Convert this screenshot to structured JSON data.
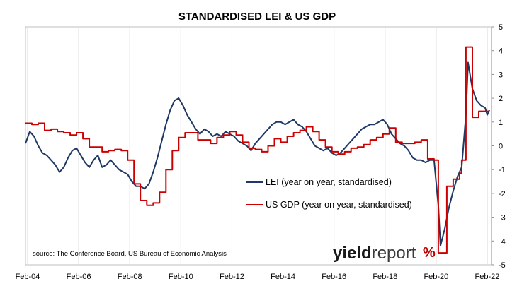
{
  "chart_data": {
    "type": "line",
    "title": "STANDARDISED LEI & US GDP",
    "source": "source: The Conference Board, US Bureau of Economic Analysis",
    "watermark": {
      "text_main": "yield",
      "text_accent": "report",
      "symbol": "%"
    },
    "xlabel": "",
    "ylabel": "",
    "x_tick_labels": [
      "Feb-04",
      "Feb-06",
      "Feb-08",
      "Feb-10",
      "Feb-12",
      "Feb-14",
      "Feb-16",
      "Feb-18",
      "Feb-20",
      "Feb-22"
    ],
    "y_tick_labels": [
      "5",
      "4",
      "3",
      "2",
      "1",
      "0",
      "-1",
      "-2",
      "-3",
      "-4",
      "-5"
    ],
    "xlim": [
      "2004-01",
      "2022-04"
    ],
    "ylim": [
      -5,
      5
    ],
    "y_axis_side": "right",
    "grid": {
      "vertical": true,
      "horizontal": false
    },
    "legend_placement": "center-right, inside plot",
    "series": [
      {
        "name": "LEI (year on year, standardised)",
        "color": "#1f3864",
        "points": [
          [
            "2004-01",
            0.1
          ],
          [
            "2004-03",
            0.6
          ],
          [
            "2004-05",
            0.4
          ],
          [
            "2004-07",
            0.0
          ],
          [
            "2004-09",
            -0.3
          ],
          [
            "2004-11",
            -0.4
          ],
          [
            "2005-01",
            -0.6
          ],
          [
            "2005-03",
            -0.8
          ],
          [
            "2005-05",
            -1.1
          ],
          [
            "2005-07",
            -0.9
          ],
          [
            "2005-09",
            -0.5
          ],
          [
            "2005-11",
            -0.2
          ],
          [
            "2006-01",
            -0.1
          ],
          [
            "2006-03",
            -0.4
          ],
          [
            "2006-05",
            -0.7
          ],
          [
            "2006-07",
            -0.9
          ],
          [
            "2006-09",
            -0.6
          ],
          [
            "2006-11",
            -0.4
          ],
          [
            "2007-01",
            -0.9
          ],
          [
            "2007-03",
            -0.8
          ],
          [
            "2007-05",
            -0.6
          ],
          [
            "2007-07",
            -0.8
          ],
          [
            "2007-09",
            -1.0
          ],
          [
            "2007-11",
            -1.1
          ],
          [
            "2008-01",
            -1.2
          ],
          [
            "2008-03",
            -1.5
          ],
          [
            "2008-05",
            -1.7
          ],
          [
            "2008-07",
            -1.7
          ],
          [
            "2008-09",
            -1.8
          ],
          [
            "2008-11",
            -1.6
          ],
          [
            "2009-01",
            -1.1
          ],
          [
            "2009-03",
            -0.5
          ],
          [
            "2009-05",
            0.2
          ],
          [
            "2009-07",
            0.9
          ],
          [
            "2009-09",
            1.5
          ],
          [
            "2009-11",
            1.9
          ],
          [
            "2010-01",
            2.0
          ],
          [
            "2010-03",
            1.7
          ],
          [
            "2010-05",
            1.3
          ],
          [
            "2010-07",
            1.0
          ],
          [
            "2010-09",
            0.7
          ],
          [
            "2010-11",
            0.5
          ],
          [
            "2011-01",
            0.7
          ],
          [
            "2011-03",
            0.6
          ],
          [
            "2011-05",
            0.4
          ],
          [
            "2011-07",
            0.5
          ],
          [
            "2011-09",
            0.4
          ],
          [
            "2011-11",
            0.6
          ],
          [
            "2012-01",
            0.5
          ],
          [
            "2012-03",
            0.4
          ],
          [
            "2012-05",
            0.2
          ],
          [
            "2012-07",
            0.1
          ],
          [
            "2012-09",
            0.0
          ],
          [
            "2012-11",
            -0.2
          ],
          [
            "2013-01",
            0.1
          ],
          [
            "2013-03",
            0.3
          ],
          [
            "2013-05",
            0.5
          ],
          [
            "2013-07",
            0.7
          ],
          [
            "2013-09",
            0.9
          ],
          [
            "2013-11",
            1.0
          ],
          [
            "2014-01",
            1.0
          ],
          [
            "2014-03",
            0.9
          ],
          [
            "2014-05",
            1.0
          ],
          [
            "2014-07",
            1.1
          ],
          [
            "2014-09",
            0.9
          ],
          [
            "2014-11",
            0.8
          ],
          [
            "2015-01",
            0.6
          ],
          [
            "2015-03",
            0.3
          ],
          [
            "2015-05",
            0.0
          ],
          [
            "2015-07",
            -0.1
          ],
          [
            "2015-09",
            -0.2
          ],
          [
            "2015-11",
            -0.1
          ],
          [
            "2016-01",
            -0.3
          ],
          [
            "2016-03",
            -0.4
          ],
          [
            "2016-05",
            -0.3
          ],
          [
            "2016-07",
            -0.1
          ],
          [
            "2016-09",
            0.1
          ],
          [
            "2016-11",
            0.3
          ],
          [
            "2017-01",
            0.5
          ],
          [
            "2017-03",
            0.7
          ],
          [
            "2017-05",
            0.8
          ],
          [
            "2017-07",
            0.9
          ],
          [
            "2017-09",
            0.9
          ],
          [
            "2017-11",
            1.0
          ],
          [
            "2018-01",
            1.1
          ],
          [
            "2018-03",
            0.9
          ],
          [
            "2018-05",
            0.5
          ],
          [
            "2018-07",
            0.3
          ],
          [
            "2018-09",
            0.1
          ],
          [
            "2018-11",
            0.0
          ],
          [
            "2019-01",
            -0.2
          ],
          [
            "2019-03",
            -0.5
          ],
          [
            "2019-05",
            -0.6
          ],
          [
            "2019-07",
            -0.6
          ],
          [
            "2019-09",
            -0.7
          ],
          [
            "2019-11",
            -0.6
          ],
          [
            "2020-01",
            -0.6
          ],
          [
            "2020-03",
            -2.5
          ],
          [
            "2020-04",
            -4.2
          ],
          [
            "2020-06",
            -3.5
          ],
          [
            "2020-08",
            -2.6
          ],
          [
            "2020-10",
            -1.9
          ],
          [
            "2020-12",
            -1.3
          ],
          [
            "2021-02",
            -0.9
          ],
          [
            "2021-04",
            1.3
          ],
          [
            "2021-05",
            3.5
          ],
          [
            "2021-07",
            2.4
          ],
          [
            "2021-09",
            1.9
          ],
          [
            "2021-11",
            1.7
          ],
          [
            "2022-01",
            1.6
          ],
          [
            "2022-02",
            1.3
          ],
          [
            "2022-03",
            1.5
          ]
        ]
      },
      {
        "name": "US GDP (year on year, standardised)",
        "color": "#cc0000",
        "step": true,
        "points": [
          [
            "2004-01",
            0.95
          ],
          [
            "2004-04",
            0.9
          ],
          [
            "2004-07",
            0.95
          ],
          [
            "2004-10",
            0.65
          ],
          [
            "2005-01",
            0.7
          ],
          [
            "2005-04",
            0.6
          ],
          [
            "2005-07",
            0.55
          ],
          [
            "2005-10",
            0.45
          ],
          [
            "2006-01",
            0.55
          ],
          [
            "2006-04",
            0.3
          ],
          [
            "2006-07",
            -0.05
          ],
          [
            "2006-10",
            -0.05
          ],
          [
            "2007-01",
            -0.25
          ],
          [
            "2007-04",
            -0.2
          ],
          [
            "2007-07",
            -0.15
          ],
          [
            "2007-10",
            -0.2
          ],
          [
            "2008-01",
            -0.6
          ],
          [
            "2008-04",
            -1.6
          ],
          [
            "2008-07",
            -2.3
          ],
          [
            "2008-10",
            -2.5
          ],
          [
            "2009-01",
            -2.4
          ],
          [
            "2009-04",
            -1.95
          ],
          [
            "2009-07",
            -1.0
          ],
          [
            "2009-10",
            -0.2
          ],
          [
            "2010-01",
            0.35
          ],
          [
            "2010-04",
            0.55
          ],
          [
            "2010-07",
            0.55
          ],
          [
            "2010-10",
            0.25
          ],
          [
            "2011-01",
            0.25
          ],
          [
            "2011-04",
            0.1
          ],
          [
            "2011-07",
            0.35
          ],
          [
            "2011-10",
            0.45
          ],
          [
            "2012-01",
            0.6
          ],
          [
            "2012-04",
            0.45
          ],
          [
            "2012-07",
            0.15
          ],
          [
            "2012-10",
            -0.1
          ],
          [
            "2013-01",
            -0.15
          ],
          [
            "2013-04",
            -0.25
          ],
          [
            "2013-07",
            0.0
          ],
          [
            "2013-10",
            0.3
          ],
          [
            "2014-01",
            0.15
          ],
          [
            "2014-04",
            0.4
          ],
          [
            "2014-07",
            0.55
          ],
          [
            "2014-10",
            0.65
          ],
          [
            "2015-01",
            0.8
          ],
          [
            "2015-04",
            0.6
          ],
          [
            "2015-07",
            0.25
          ],
          [
            "2015-10",
            -0.05
          ],
          [
            "2016-01",
            -0.25
          ],
          [
            "2016-04",
            -0.35
          ],
          [
            "2016-07",
            -0.25
          ],
          [
            "2016-10",
            -0.1
          ],
          [
            "2017-01",
            -0.05
          ],
          [
            "2017-04",
            0.05
          ],
          [
            "2017-07",
            0.25
          ],
          [
            "2017-10",
            0.35
          ],
          [
            "2018-01",
            0.5
          ],
          [
            "2018-04",
            0.75
          ],
          [
            "2018-07",
            0.15
          ],
          [
            "2018-10",
            0.1
          ],
          [
            "2019-01",
            0.1
          ],
          [
            "2019-04",
            0.15
          ],
          [
            "2019-07",
            0.25
          ],
          [
            "2019-10",
            -0.55
          ],
          [
            "2020-01",
            -0.6
          ],
          [
            "2020-03",
            -4.5
          ],
          [
            "2020-07",
            -1.7
          ],
          [
            "2020-10",
            -1.4
          ],
          [
            "2021-01",
            -1.15
          ],
          [
            "2021-02",
            -0.6
          ],
          [
            "2021-04",
            4.15
          ],
          [
            "2021-07",
            1.2
          ],
          [
            "2021-10",
            1.45
          ],
          [
            "2022-01",
            1.45
          ]
        ]
      }
    ]
  }
}
